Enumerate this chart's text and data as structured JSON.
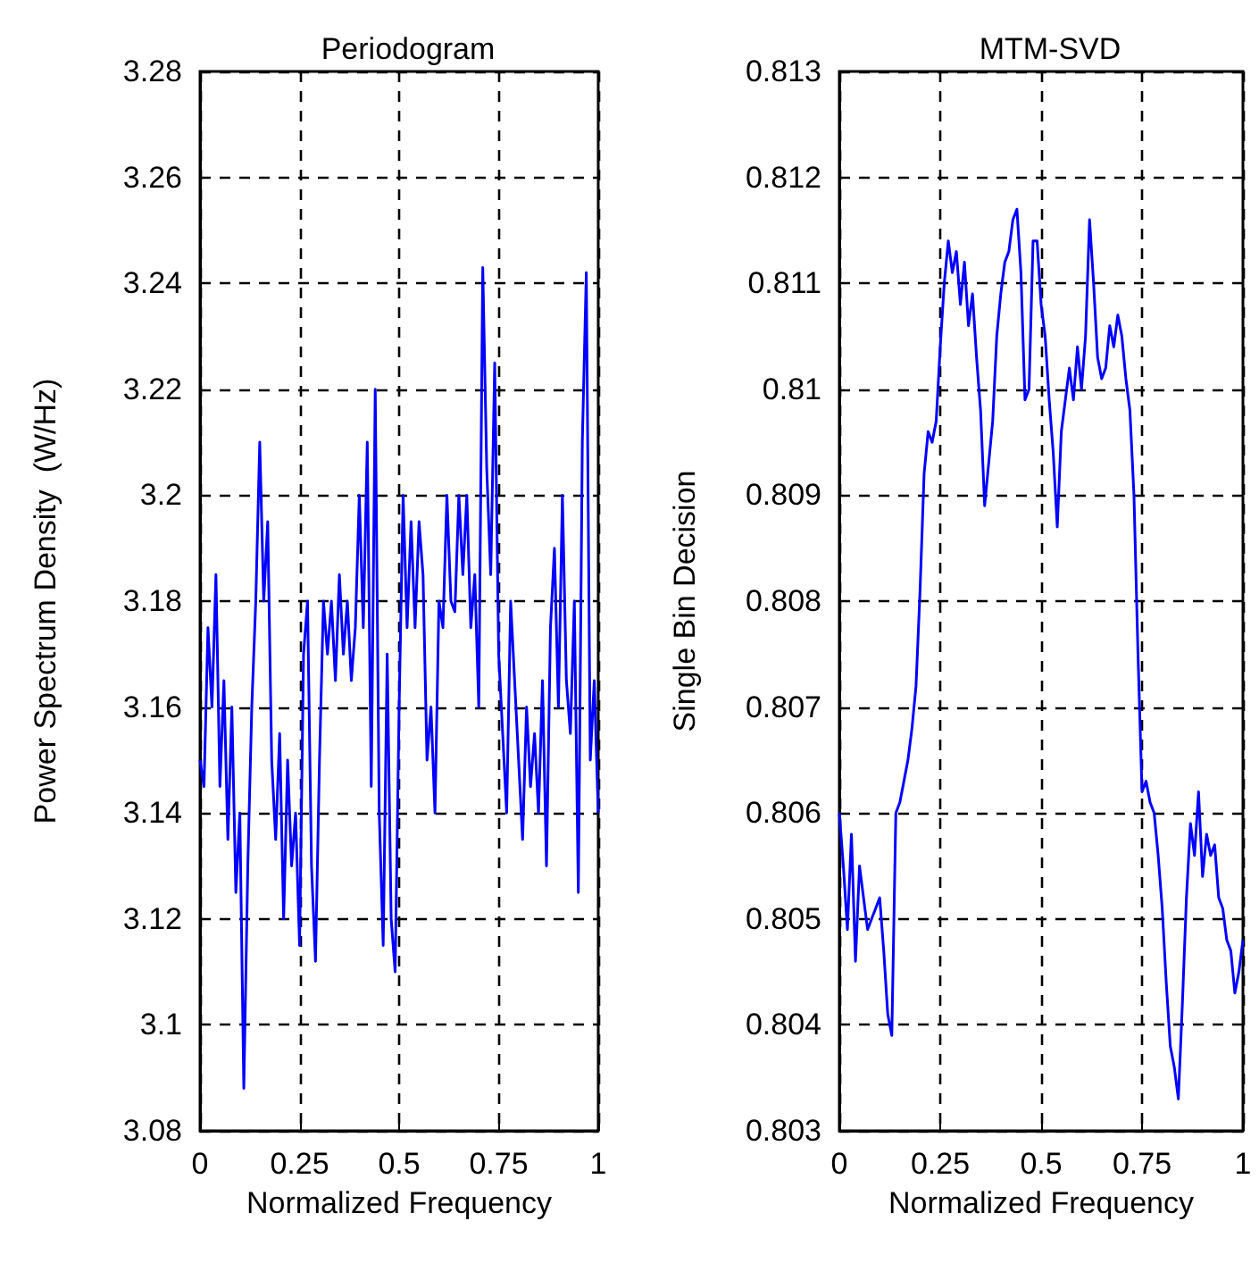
{
  "chart_data": [
    {
      "type": "line",
      "title": "Periodogram",
      "xlabel": "Normalized Frequency",
      "ylabel": "Power Spectrum Density  (W/Hz)",
      "grid": true,
      "marker": "none",
      "line_style": "solid",
      "xlim": [
        0,
        1
      ],
      "ylim": [
        3.08,
        3.28
      ],
      "xticks": [
        0,
        0.25,
        0.5,
        0.75,
        1
      ],
      "yticks": [
        3.08,
        3.1,
        3.12,
        3.14,
        3.16,
        3.18,
        3.2,
        3.22,
        3.24,
        3.26,
        3.28
      ],
      "x": [
        0,
        0.01,
        0.02,
        0.03,
        0.04,
        0.05,
        0.06,
        0.07,
        0.08,
        0.09,
        0.1,
        0.11,
        0.12,
        0.13,
        0.14,
        0.15,
        0.16,
        0.17,
        0.18,
        0.19,
        0.2,
        0.21,
        0.22,
        0.23,
        0.24,
        0.25,
        0.26,
        0.27,
        0.28,
        0.29,
        0.3,
        0.31,
        0.32,
        0.33,
        0.34,
        0.35,
        0.36,
        0.37,
        0.38,
        0.39,
        0.4,
        0.41,
        0.42,
        0.43,
        0.44,
        0.45,
        0.46,
        0.47,
        0.48,
        0.49,
        0.5,
        0.51,
        0.52,
        0.53,
        0.54,
        0.55,
        0.56,
        0.57,
        0.58,
        0.59,
        0.6,
        0.61,
        0.62,
        0.63,
        0.64,
        0.65,
        0.66,
        0.67,
        0.68,
        0.69,
        0.7,
        0.71,
        0.72,
        0.73,
        0.74,
        0.75,
        0.76,
        0.77,
        0.78,
        0.79,
        0.8,
        0.81,
        0.82,
        0.83,
        0.84,
        0.85,
        0.86,
        0.87,
        0.88,
        0.89,
        0.9,
        0.91,
        0.92,
        0.93,
        0.94,
        0.95,
        0.96,
        0.97,
        0.98,
        0.99,
        1
      ],
      "series": [
        {
          "color": "#0000ff",
          "values": [
            3.15,
            3.145,
            3.175,
            3.16,
            3.185,
            3.145,
            3.165,
            3.135,
            3.16,
            3.125,
            3.14,
            3.088,
            3.13,
            3.16,
            3.18,
            3.21,
            3.18,
            3.195,
            3.15,
            3.135,
            3.155,
            3.12,
            3.15,
            3.13,
            3.14,
            3.115,
            3.17,
            3.18,
            3.13,
            3.112,
            3.15,
            3.18,
            3.17,
            3.18,
            3.165,
            3.185,
            3.17,
            3.18,
            3.165,
            3.175,
            3.2,
            3.175,
            3.21,
            3.145,
            3.22,
            3.14,
            3.115,
            3.17,
            3.12,
            3.11,
            3.16,
            3.2,
            3.175,
            3.195,
            3.175,
            3.195,
            3.185,
            3.15,
            3.16,
            3.14,
            3.18,
            3.175,
            3.2,
            3.18,
            3.178,
            3.2,
            3.185,
            3.2,
            3.175,
            3.185,
            3.16,
            3.243,
            3.205,
            3.185,
            3.225,
            3.17,
            3.155,
            3.14,
            3.18,
            3.165,
            3.15,
            3.135,
            3.16,
            3.145,
            3.155,
            3.14,
            3.165,
            3.13,
            3.175,
            3.19,
            3.16,
            3.2,
            3.165,
            3.155,
            3.18,
            3.125,
            3.21,
            3.242,
            3.15,
            3.165,
            3.14
          ]
        }
      ]
    },
    {
      "type": "line",
      "title": "MTM-SVD",
      "xlabel": "Normalized Frequency",
      "ylabel": "Single Bin Decision",
      "grid": true,
      "marker": "none",
      "line_style": "solid",
      "xlim": [
        0,
        1
      ],
      "ylim": [
        0.803,
        0.813
      ],
      "xticks": [
        0,
        0.25,
        0.5,
        0.75,
        1
      ],
      "yticks": [
        0.803,
        0.804,
        0.805,
        0.806,
        0.807,
        0.808,
        0.809,
        0.81,
        0.811,
        0.812,
        0.813
      ],
      "x": [
        0,
        0.01,
        0.02,
        0.03,
        0.04,
        0.05,
        0.06,
        0.07,
        0.08,
        0.09,
        0.1,
        0.11,
        0.12,
        0.13,
        0.14,
        0.15,
        0.16,
        0.17,
        0.18,
        0.19,
        0.2,
        0.21,
        0.22,
        0.23,
        0.24,
        0.25,
        0.26,
        0.27,
        0.28,
        0.29,
        0.3,
        0.31,
        0.32,
        0.33,
        0.34,
        0.35,
        0.36,
        0.37,
        0.38,
        0.39,
        0.4,
        0.41,
        0.42,
        0.43,
        0.44,
        0.45,
        0.46,
        0.47,
        0.48,
        0.49,
        0.5,
        0.51,
        0.52,
        0.53,
        0.54,
        0.55,
        0.56,
        0.57,
        0.58,
        0.59,
        0.6,
        0.61,
        0.62,
        0.63,
        0.64,
        0.65,
        0.66,
        0.67,
        0.68,
        0.69,
        0.7,
        0.71,
        0.72,
        0.73,
        0.74,
        0.75,
        0.76,
        0.77,
        0.78,
        0.79,
        0.8,
        0.81,
        0.82,
        0.83,
        0.84,
        0.85,
        0.86,
        0.87,
        0.88,
        0.89,
        0.9,
        0.91,
        0.92,
        0.93,
        0.94,
        0.95,
        0.96,
        0.97,
        0.98,
        0.99,
        1
      ],
      "series": [
        {
          "color": "#0000ff",
          "values": [
            0.806,
            0.8055,
            0.8049,
            0.8058,
            0.8046,
            0.8055,
            0.8052,
            0.8049,
            0.805,
            0.8051,
            0.8052,
            0.8047,
            0.8041,
            0.8039,
            0.806,
            0.8061,
            0.8063,
            0.8065,
            0.8068,
            0.8072,
            0.8081,
            0.8092,
            0.8096,
            0.8095,
            0.8097,
            0.8104,
            0.811,
            0.8114,
            0.8111,
            0.8113,
            0.8108,
            0.8112,
            0.8106,
            0.8109,
            0.8103,
            0.8098,
            0.8089,
            0.8093,
            0.8097,
            0.8105,
            0.8109,
            0.8112,
            0.8113,
            0.8116,
            0.8117,
            0.8111,
            0.8099,
            0.81,
            0.8114,
            0.8114,
            0.8108,
            0.8105,
            0.8099,
            0.8094,
            0.8087,
            0.8096,
            0.8099,
            0.8102,
            0.8099,
            0.8104,
            0.81,
            0.8105,
            0.8116,
            0.811,
            0.8103,
            0.8101,
            0.8102,
            0.8106,
            0.8104,
            0.8107,
            0.8105,
            0.8101,
            0.8098,
            0.809,
            0.8075,
            0.8062,
            0.8063,
            0.8061,
            0.806,
            0.8056,
            0.8051,
            0.8044,
            0.8038,
            0.8036,
            0.8033,
            0.8042,
            0.8052,
            0.8059,
            0.8056,
            0.8062,
            0.8054,
            0.8058,
            0.8056,
            0.8057,
            0.8052,
            0.8051,
            0.8048,
            0.8047,
            0.8043,
            0.8045,
            0.8048
          ]
        }
      ]
    }
  ]
}
